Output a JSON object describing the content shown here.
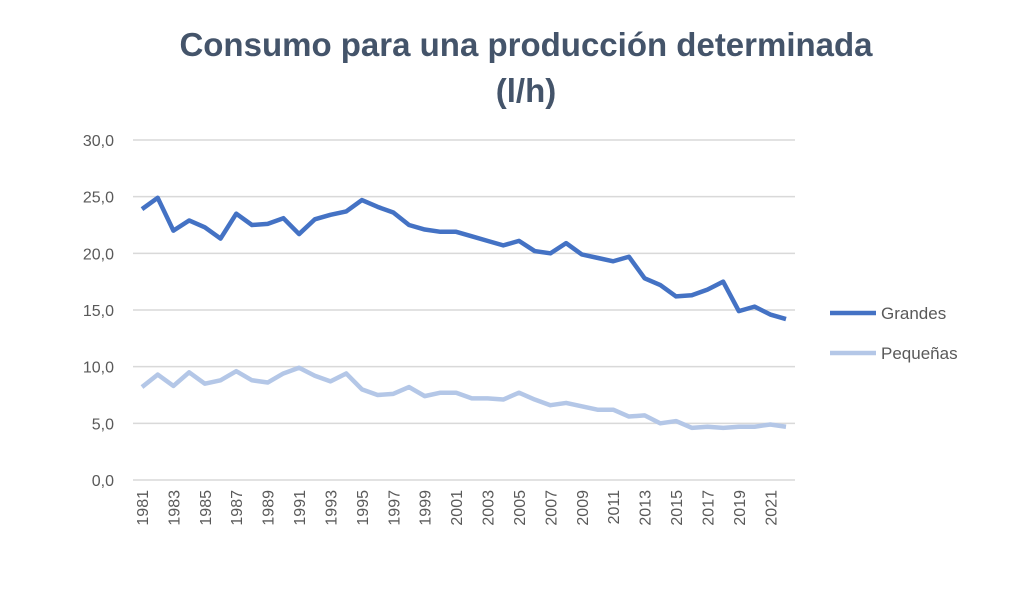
{
  "chart_data": {
    "type": "line",
    "title": [
      "Consumo para una producción determinada",
      "(l/h)"
    ],
    "xlabel": "",
    "ylabel": "",
    "ylim": [
      0,
      30
    ],
    "yticks": [
      "0,0",
      "5,0",
      "10,0",
      "15,0",
      "20,0",
      "25,0",
      "30,0"
    ],
    "grid": true,
    "legend": "right",
    "x": [
      1981,
      1982,
      1983,
      1984,
      1985,
      1986,
      1987,
      1988,
      1989,
      1990,
      1991,
      1992,
      1993,
      1994,
      1995,
      1996,
      1997,
      1998,
      1999,
      2000,
      2001,
      2002,
      2003,
      2004,
      2005,
      2006,
      2007,
      2008,
      2009,
      2010,
      2011,
      2012,
      2013,
      2014,
      2015,
      2016,
      2017,
      2018,
      2019,
      2020,
      2021,
      2022
    ],
    "series": [
      {
        "name": "Grandes",
        "color": "#4472c4",
        "values": [
          23.9,
          24.9,
          22.0,
          22.9,
          22.3,
          21.3,
          23.5,
          22.5,
          22.6,
          23.1,
          21.7,
          23.0,
          23.4,
          23.7,
          24.7,
          24.1,
          23.6,
          22.5,
          22.1,
          21.9,
          21.9,
          21.5,
          21.1,
          20.7,
          21.1,
          20.2,
          20.0,
          20.9,
          19.9,
          19.6,
          19.3,
          19.7,
          17.8,
          17.2,
          16.2,
          16.3,
          16.8,
          17.5,
          14.9,
          15.3,
          14.6,
          14.2
        ]
      },
      {
        "name": "Pequeñas",
        "color": "#b4c7e7",
        "values": [
          8.2,
          9.3,
          8.3,
          9.5,
          8.5,
          8.8,
          9.6,
          8.8,
          8.6,
          9.4,
          9.9,
          9.2,
          8.7,
          9.4,
          8.0,
          7.5,
          7.6,
          8.2,
          7.4,
          7.7,
          7.7,
          7.2,
          7.2,
          7.1,
          7.7,
          7.1,
          6.6,
          6.8,
          6.5,
          6.2,
          6.2,
          5.6,
          5.7,
          5.0,
          5.2,
          4.6,
          4.7,
          4.6,
          4.7,
          4.7,
          4.9,
          4.7
        ]
      }
    ]
  }
}
